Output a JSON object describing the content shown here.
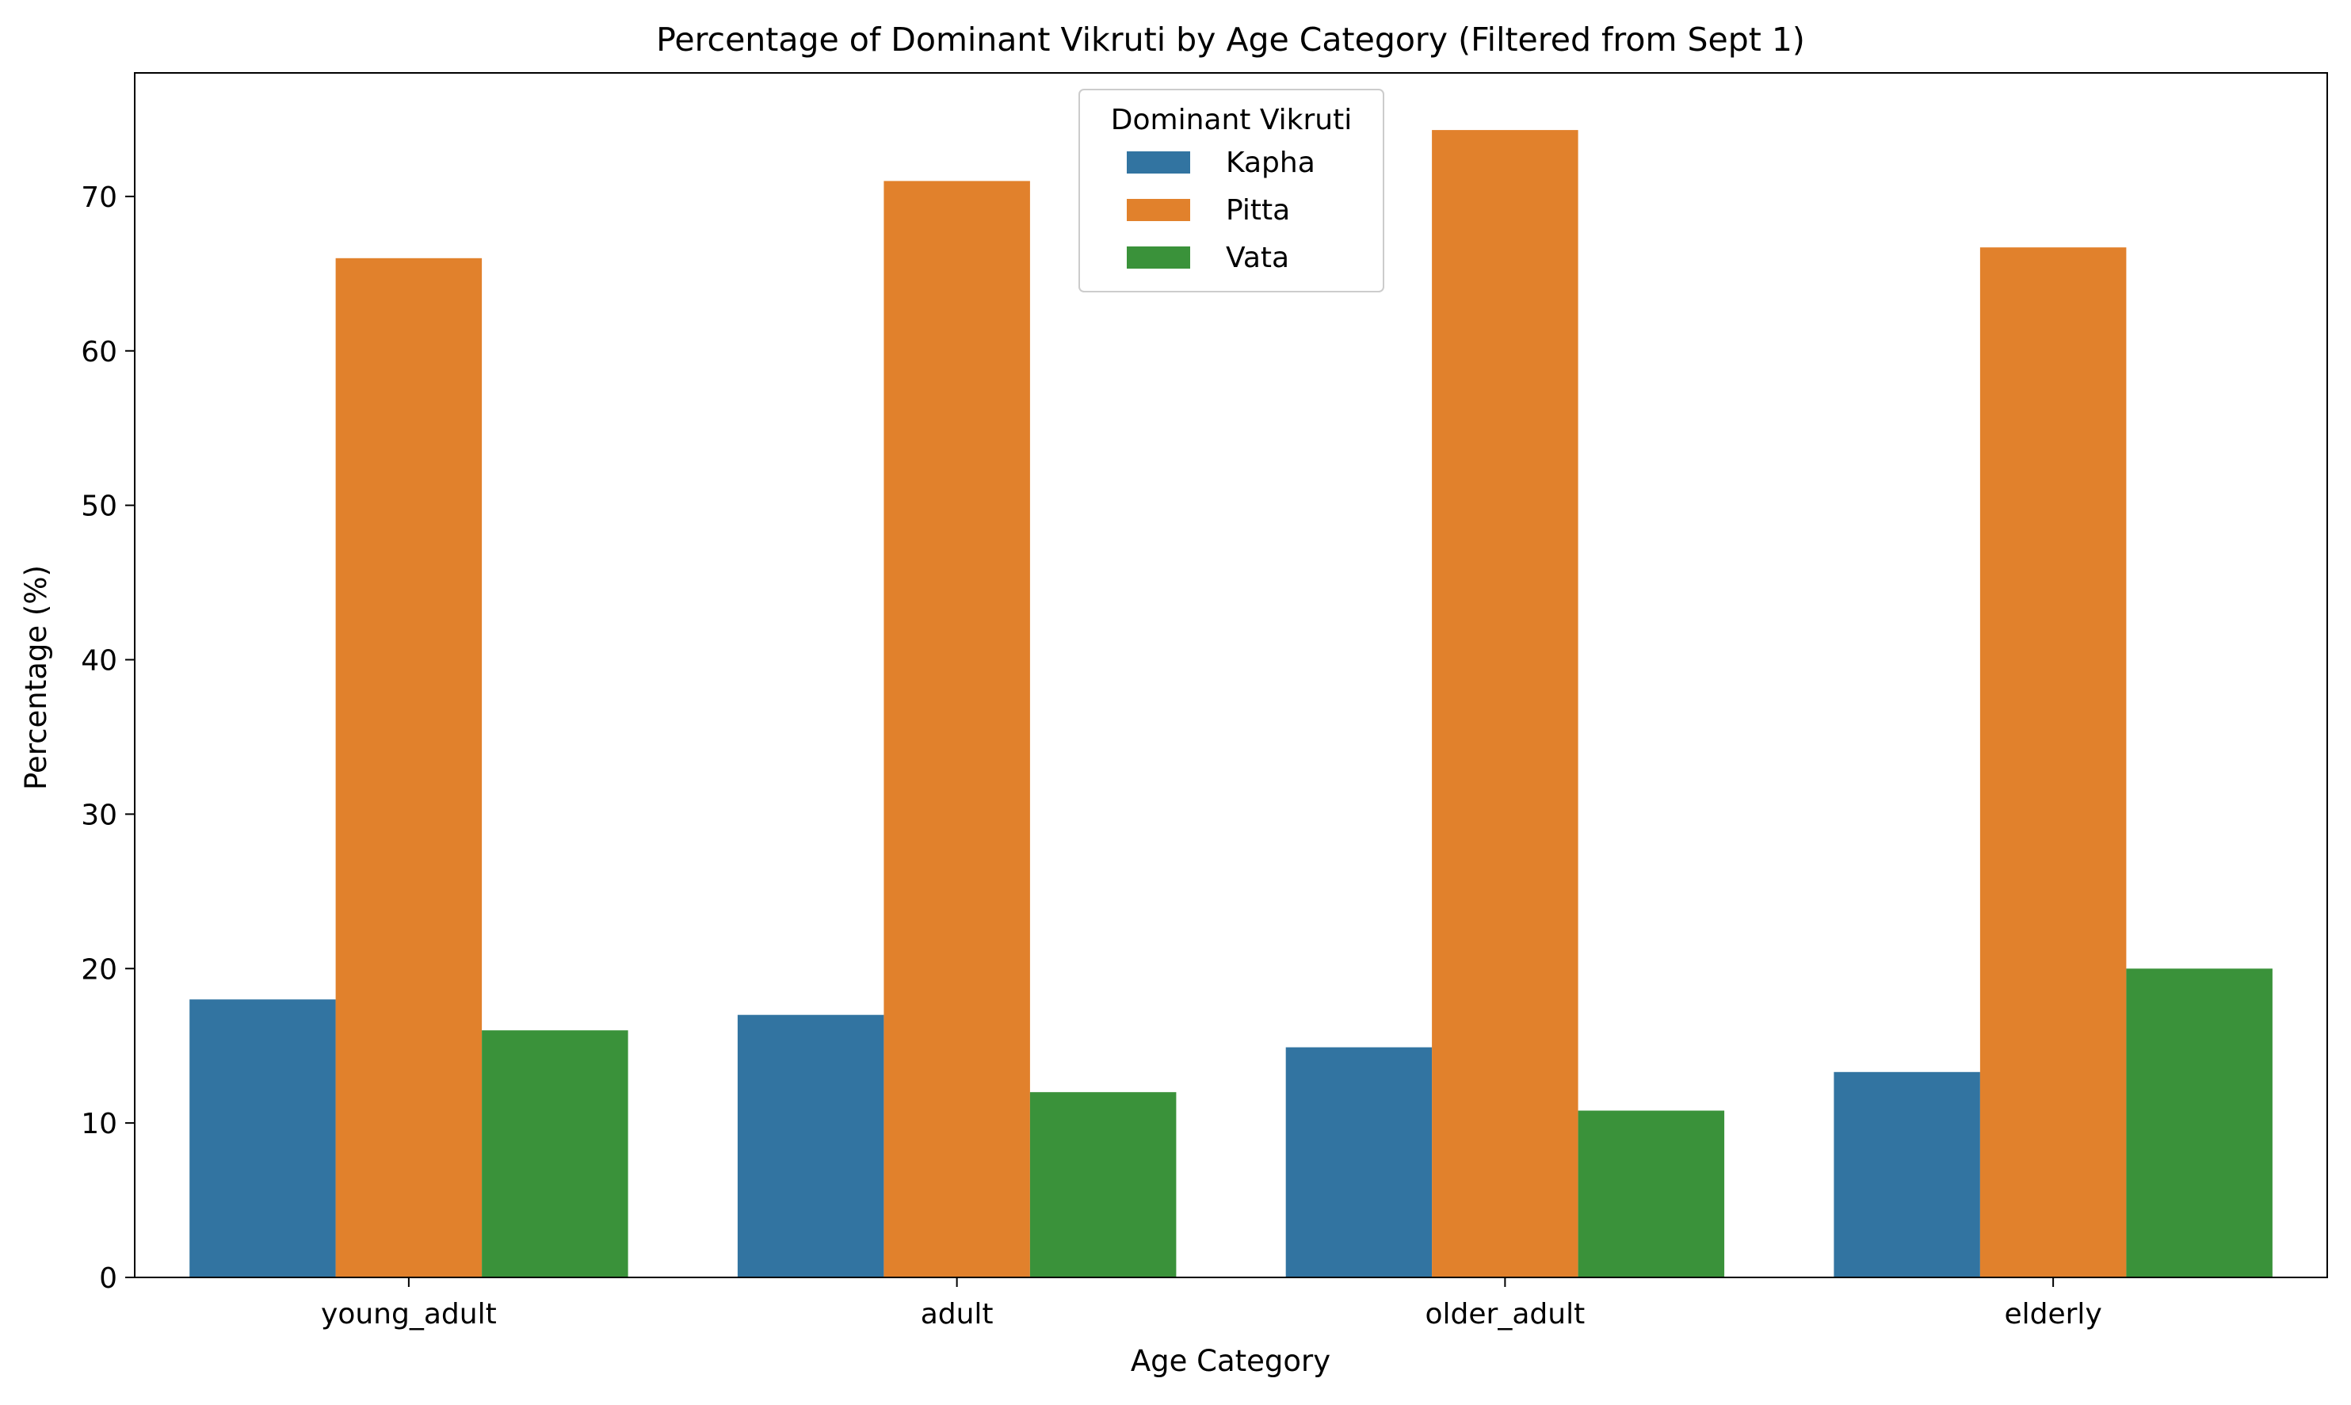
{
  "chart_data": {
    "type": "bar",
    "title": "Percentage of Dominant Vikruti by Age Category (Filtered from Sept 1)",
    "xlabel": "Age Category",
    "ylabel": "Percentage (%)",
    "categories": [
      "young_adult",
      "adult",
      "older_adult",
      "elderly"
    ],
    "series": [
      {
        "name": "Kapha",
        "color": "#3274a1",
        "values": [
          18.0,
          17.0,
          14.9,
          13.3
        ]
      },
      {
        "name": "Pitta",
        "color": "#e1812c",
        "values": [
          66.0,
          71.0,
          74.3,
          66.7
        ]
      },
      {
        "name": "Vata",
        "color": "#3a923a",
        "values": [
          16.0,
          12.0,
          10.8,
          20.0
        ]
      }
    ],
    "ylim": [
      0,
      78
    ],
    "yticks": [
      0,
      10,
      20,
      30,
      40,
      50,
      60,
      70
    ],
    "grid": false,
    "legend": {
      "title": "Dominant Vikruti",
      "placement": "top-center"
    }
  }
}
